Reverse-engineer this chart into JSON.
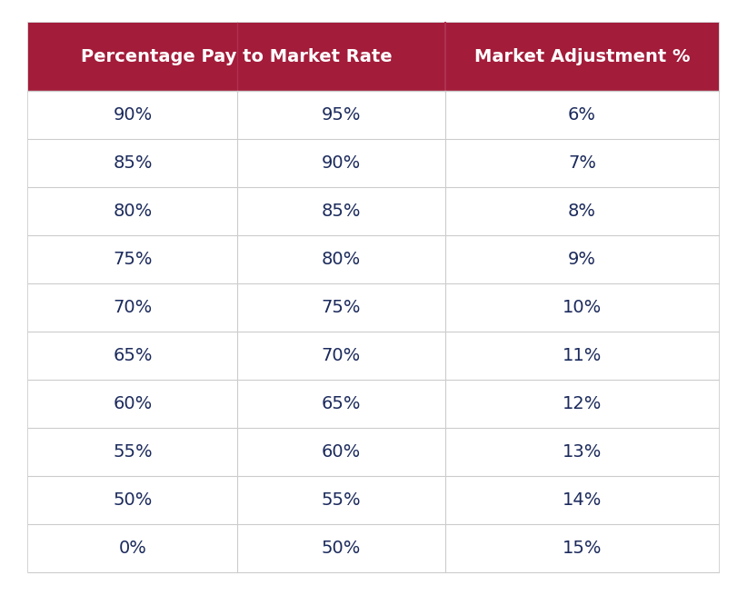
{
  "header_col1": "Percentage Pay to Market Rate",
  "header_col2": "Market Adjustment %",
  "col1_data": [
    "90%",
    "85%",
    "80%",
    "75%",
    "70%",
    "65%",
    "60%",
    "55%",
    "50%",
    "0%"
  ],
  "col2_data": [
    "95%",
    "90%",
    "85%",
    "80%",
    "75%",
    "70%",
    "65%",
    "60%",
    "55%",
    "50%"
  ],
  "col3_data": [
    "6%",
    "7%",
    "8%",
    "9%",
    "10%",
    "11%",
    "12%",
    "13%",
    "14%",
    "15%"
  ],
  "header_bg_color": "#A31C3A",
  "header_text_color": "#FFFFFF",
  "row_bg": "#FFFFFF",
  "cell_text_color": "#1B2A5C",
  "border_color": "#CCCCCC",
  "outer_border_color": "#CCCCCC",
  "fig_bg_color": "#FFFFFF",
  "header_fontsize": 14,
  "cell_fontsize": 14,
  "col_divider_in_header": "#C04060"
}
